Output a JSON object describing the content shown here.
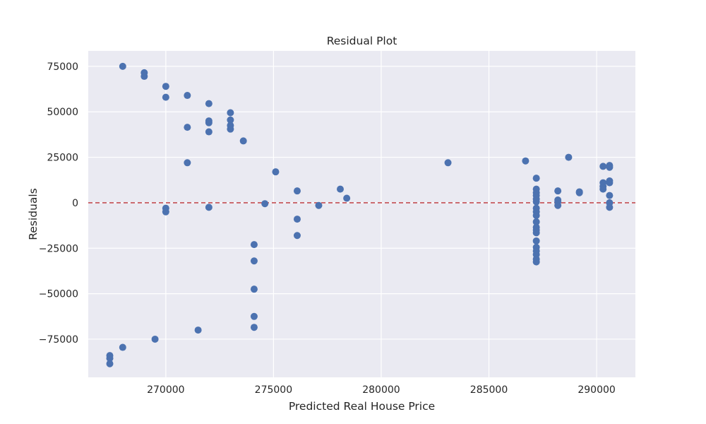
{
  "chart_data": {
    "type": "scatter",
    "title": "Residual Plot",
    "xlabel": "Predicted Real House Price",
    "ylabel": "Residuals",
    "xlim": [
      266400,
      291800
    ],
    "ylim": [
      -96000,
      83500
    ],
    "xticks": [
      270000,
      275000,
      280000,
      285000,
      290000
    ],
    "yticks": [
      -75000,
      -50000,
      -25000,
      0,
      25000,
      50000,
      75000
    ],
    "grid": true,
    "point_color": "#4c72b0",
    "reference_line": {
      "y": 0,
      "color": "#c44e52",
      "style": "dashed"
    },
    "series": [
      {
        "points": [
          [
            268000,
            75000
          ],
          [
            269000,
            71500
          ],
          [
            269000,
            69500
          ],
          [
            270000,
            64000
          ],
          [
            270000,
            58000
          ],
          [
            270000,
            -3000
          ],
          [
            270000,
            -5000
          ],
          [
            271000,
            59000
          ],
          [
            271000,
            41500
          ],
          [
            271000,
            22000
          ],
          [
            272000,
            54500
          ],
          [
            272000,
            45000
          ],
          [
            272000,
            44000
          ],
          [
            272000,
            39000
          ],
          [
            272000,
            -2500
          ],
          [
            273000,
            49500
          ],
          [
            273000,
            45500
          ],
          [
            273000,
            42500
          ],
          [
            273000,
            40500
          ],
          [
            273600,
            34000
          ],
          [
            274100,
            -23000
          ],
          [
            274100,
            -32000
          ],
          [
            274100,
            -47500
          ],
          [
            274100,
            -62500
          ],
          [
            274100,
            -68500
          ],
          [
            274600,
            -500
          ],
          [
            275100,
            17000
          ],
          [
            276100,
            6500
          ],
          [
            276100,
            -9000
          ],
          [
            276100,
            -18000
          ],
          [
            277100,
            -1500
          ],
          [
            278100,
            7500
          ],
          [
            278400,
            2500
          ],
          [
            283100,
            22000
          ],
          [
            286700,
            23000
          ],
          [
            287200,
            13500
          ],
          [
            287200,
            7500
          ],
          [
            287200,
            5500
          ],
          [
            287200,
            4000
          ],
          [
            287200,
            2000
          ],
          [
            287200,
            500
          ],
          [
            287200,
            -3000
          ],
          [
            287200,
            -5000
          ],
          [
            287200,
            -7000
          ],
          [
            287200,
            -10500
          ],
          [
            287200,
            -13500
          ],
          [
            287200,
            -15000
          ],
          [
            287200,
            -16500
          ],
          [
            287200,
            -21000
          ],
          [
            287200,
            -24500
          ],
          [
            287200,
            -26500
          ],
          [
            287200,
            -28500
          ],
          [
            287200,
            -31000
          ],
          [
            287200,
            -32500
          ],
          [
            288200,
            6500
          ],
          [
            288200,
            1500
          ],
          [
            288200,
            500
          ],
          [
            288200,
            -1500
          ],
          [
            288700,
            25000
          ],
          [
            289200,
            6000
          ],
          [
            289200,
            5500
          ],
          [
            290300,
            20000
          ],
          [
            290300,
            11000
          ],
          [
            290300,
            9000
          ],
          [
            290300,
            7500
          ],
          [
            290600,
            20500
          ],
          [
            290600,
            19500
          ],
          [
            290600,
            12000
          ],
          [
            290600,
            11000
          ],
          [
            290600,
            4000
          ],
          [
            290600,
            0
          ],
          [
            290600,
            -2500
          ],
          [
            267400,
            -84000
          ],
          [
            267400,
            -85500
          ],
          [
            267400,
            -88500
          ],
          [
            268000,
            -79500
          ],
          [
            269500,
            -75000
          ],
          [
            271500,
            -70000
          ]
        ]
      }
    ]
  }
}
